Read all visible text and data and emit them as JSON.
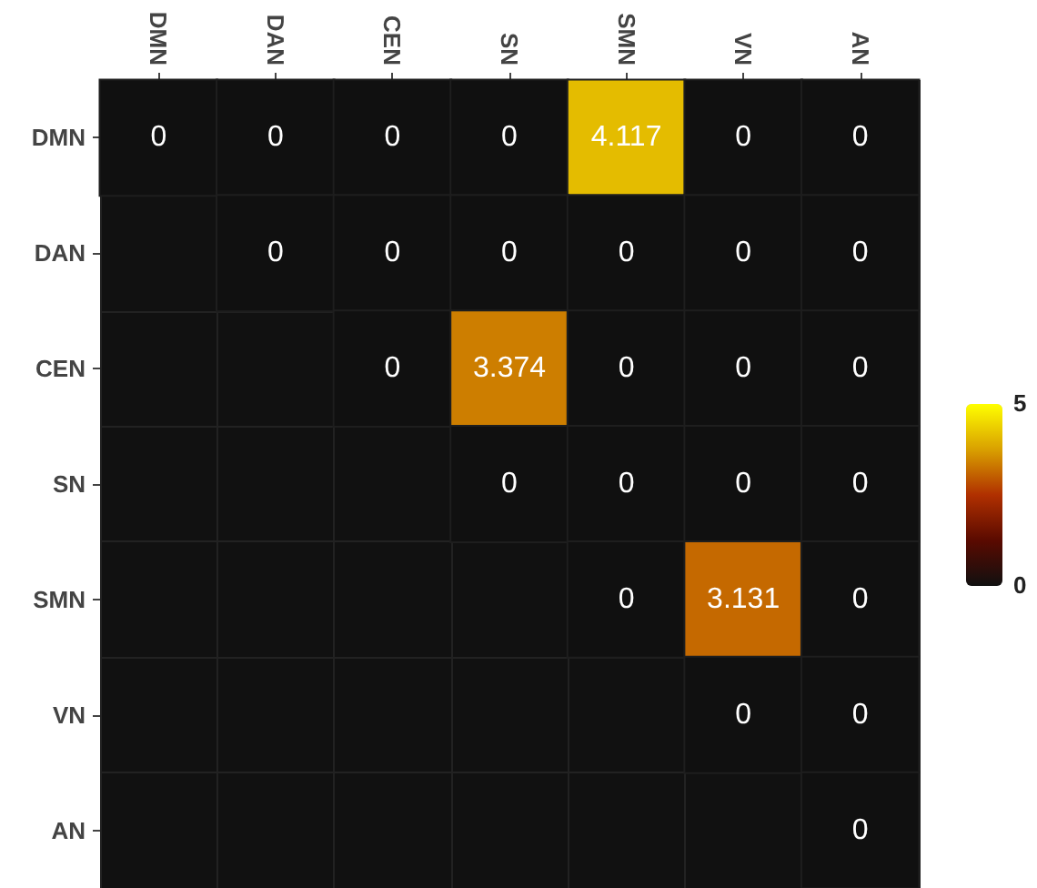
{
  "chart_data": {
    "type": "heatmap",
    "categories": [
      "DMN",
      "DAN",
      "CEN",
      "SN",
      "SMN",
      "VN",
      "AN"
    ],
    "y_categories": [
      "DMN",
      "DAN",
      "CEN",
      "SN",
      "SMN",
      "VN",
      "AN"
    ],
    "cells": [
      [
        0,
        0,
        0,
        0,
        4.117,
        0,
        0
      ],
      [
        null,
        0,
        0,
        0,
        0,
        0,
        0
      ],
      [
        null,
        null,
        0,
        3.374,
        0,
        0,
        0
      ],
      [
        null,
        null,
        null,
        0,
        0,
        0,
        0
      ],
      [
        null,
        null,
        null,
        null,
        0,
        3.131,
        0
      ],
      [
        null,
        null,
        null,
        null,
        null,
        0,
        0
      ],
      [
        null,
        null,
        null,
        null,
        null,
        null,
        0
      ]
    ],
    "clim": [
      0,
      5
    ],
    "cticks": [
      0,
      5
    ],
    "data_labels": true
  }
}
